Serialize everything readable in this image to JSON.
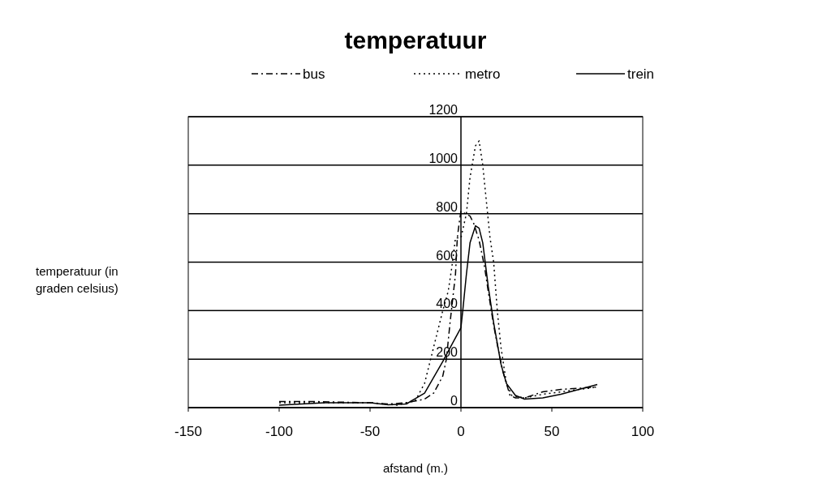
{
  "chart_data": {
    "type": "line",
    "title": "temperatuur",
    "xlabel": "afstand (m.)",
    "ylabel": "temperatuur (in graden celsius)",
    "xlim": [
      -150,
      100
    ],
    "xticks": [
      -150,
      -100,
      -50,
      0,
      50,
      100
    ],
    "ylim": [
      0,
      1200
    ],
    "yticks": [
      0,
      200,
      400,
      600,
      800,
      1000,
      1200
    ],
    "grid": "y",
    "legend": "top",
    "series": [
      {
        "name": "bus",
        "color": "#000000",
        "line_style": "dashdot",
        "x": [
          -100,
          -80,
          -50,
          -40,
          -30,
          -20,
          -15,
          -10,
          -8,
          -6,
          -3,
          -2,
          -1,
          0,
          5,
          7,
          10,
          13,
          15,
          18,
          20,
          23,
          27,
          30,
          35,
          45,
          55,
          65,
          75
        ],
        "values": [
          25,
          25,
          20,
          15,
          20,
          35,
          60,
          130,
          200,
          350,
          550,
          700,
          760,
          810,
          790,
          760,
          690,
          580,
          480,
          340,
          260,
          150,
          50,
          40,
          40,
          65,
          75,
          80,
          85
        ]
      },
      {
        "name": "metro",
        "color": "#000000",
        "line_style": "dotted",
        "x": [
          -100,
          -75,
          -50,
          -35,
          -25,
          -20,
          -15,
          -10,
          -7,
          -5,
          -3,
          0,
          3,
          5,
          8,
          10,
          12,
          14,
          16,
          18,
          20,
          22,
          25,
          28,
          35,
          45,
          55,
          65,
          75
        ],
        "values": [
          20,
          20,
          20,
          10,
          30,
          100,
          250,
          400,
          480,
          580,
          700,
          700,
          800,
          950,
          1080,
          1100,
          1000,
          850,
          700,
          600,
          400,
          250,
          100,
          50,
          40,
          55,
          65,
          75,
          85
        ]
      },
      {
        "name": "trein",
        "color": "#000000",
        "line_style": "solid",
        "x": [
          -100,
          -75,
          -50,
          -40,
          -30,
          -20,
          -10,
          -5,
          0,
          1,
          3,
          5,
          8,
          10,
          12,
          15,
          18,
          22,
          25,
          30,
          35,
          45,
          55,
          65,
          75
        ],
        "values": [
          10,
          20,
          20,
          12,
          15,
          60,
          190,
          260,
          330,
          400,
          550,
          680,
          750,
          740,
          680,
          500,
          350,
          180,
          100,
          50,
          35,
          40,
          55,
          75,
          95
        ]
      }
    ]
  }
}
